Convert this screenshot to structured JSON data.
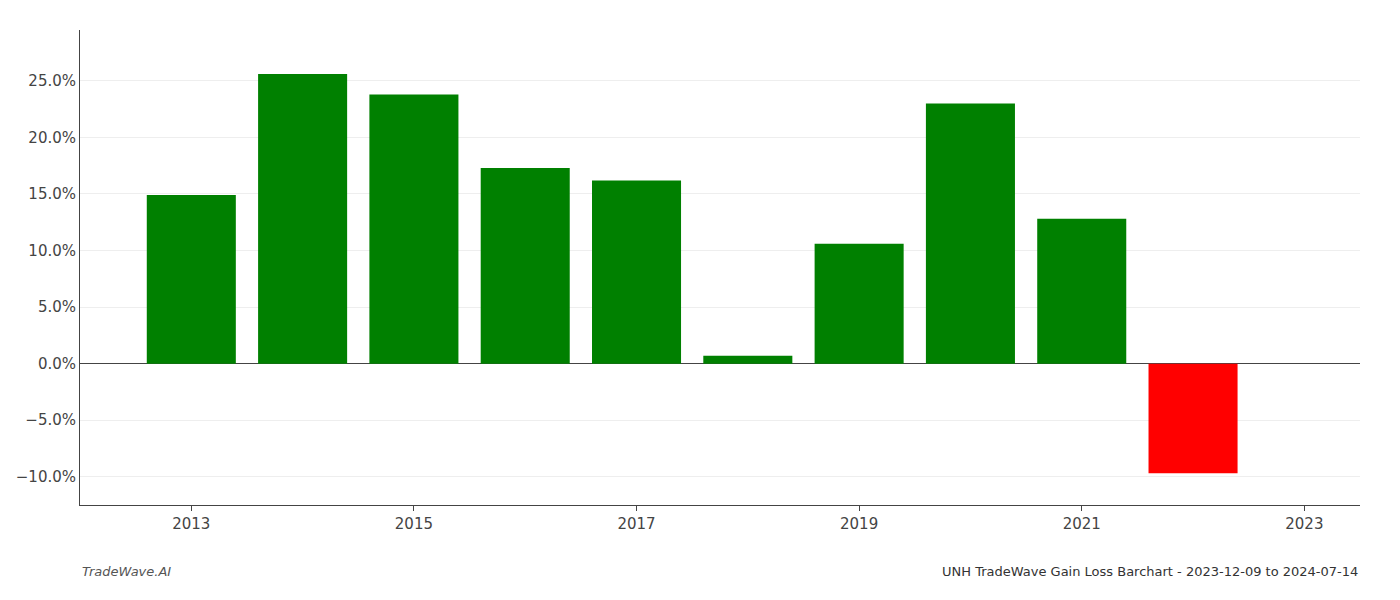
{
  "chart_data": {
    "type": "bar",
    "x": [
      2013,
      2014,
      2015,
      2016,
      2017,
      2018,
      2019,
      2020,
      2021,
      2022
    ],
    "values": [
      0.149,
      0.256,
      0.238,
      0.173,
      0.162,
      0.007,
      0.106,
      0.23,
      0.128,
      -0.097
    ],
    "colors": [
      "#008000",
      "#008000",
      "#008000",
      "#008000",
      "#008000",
      "#008000",
      "#008000",
      "#008000",
      "#008000",
      "#ff0000"
    ],
    "xlim": [
      2012.0,
      2023.5
    ],
    "xticks": [
      2013,
      2015,
      2017,
      2019,
      2021,
      2023
    ],
    "ylim": [
      -0.125,
      0.295
    ],
    "yticks": [
      {
        "value": -0.1,
        "label": "−10.0%"
      },
      {
        "value": -0.05,
        "label": "−5.0%"
      },
      {
        "value": 0.0,
        "label": "0.0%"
      },
      {
        "value": 0.05,
        "label": "5.0%"
      },
      {
        "value": 0.1,
        "label": "10.0%"
      },
      {
        "value": 0.15,
        "label": "15.0%"
      },
      {
        "value": 0.2,
        "label": "20.0%"
      },
      {
        "value": 0.25,
        "label": "25.0%"
      }
    ],
    "grid": "y",
    "annotations": [
      "TradeWave.AI",
      "UNH TradeWave Gain Loss Barchart - 2023-12-09 to 2024-07-14"
    ]
  }
}
